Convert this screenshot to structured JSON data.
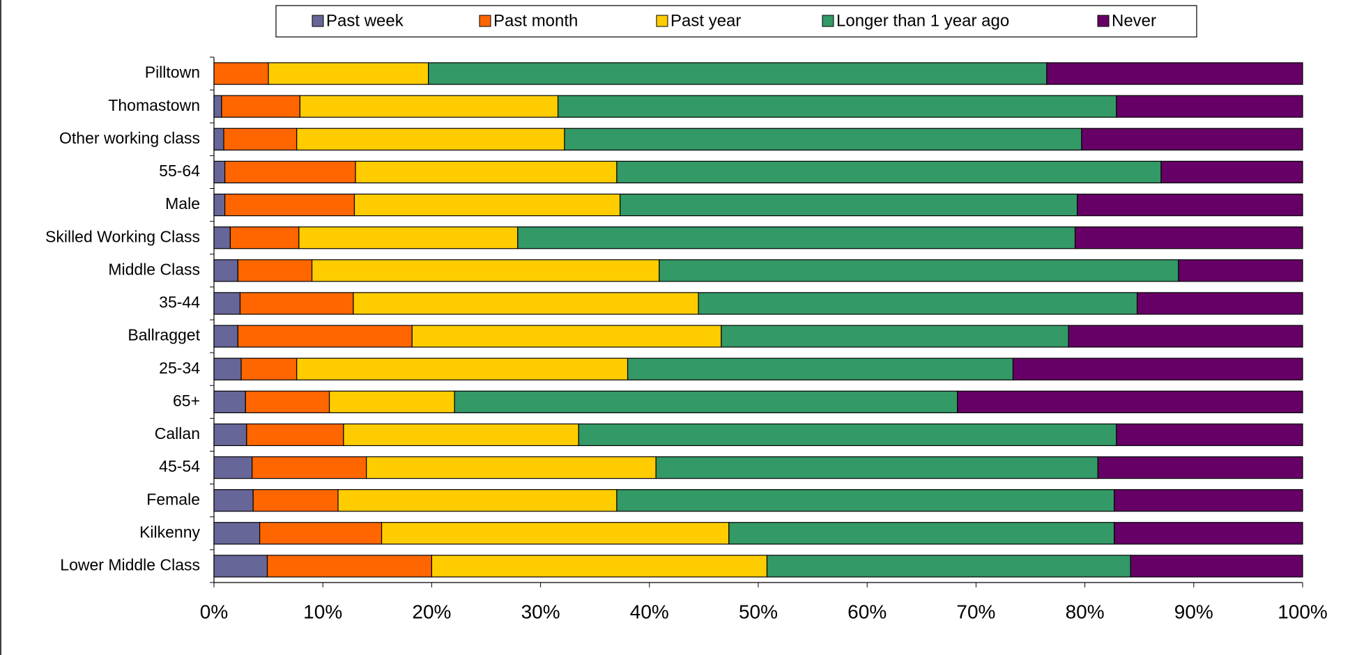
{
  "chart_data": {
    "type": "stacked_bar_horizontal",
    "categories": [
      "Pilltown",
      "Thomastown",
      "Other working class",
      "55-64",
      "Male",
      "Skilled Working Class",
      "Middle Class",
      "35-44",
      "Ballragget",
      "25-34",
      "65+",
      "Callan",
      "45-54",
      "Female",
      "Kilkenny",
      "Lower Middle Class"
    ],
    "series": [
      {
        "name": "Past week",
        "color": "#666699",
        "values": [
          0,
          0.7,
          0.9,
          1.0,
          1.0,
          1.5,
          2.2,
          2.4,
          2.2,
          2.5,
          2.9,
          3.0,
          3.5,
          3.6,
          4.2,
          4.9
        ]
      },
      {
        "name": "Past month",
        "color": "#ff6600",
        "values": [
          5.0,
          7.2,
          6.7,
          12.0,
          11.9,
          6.3,
          6.8,
          10.4,
          16.0,
          5.1,
          7.7,
          8.9,
          10.5,
          7.8,
          11.2,
          15.1
        ]
      },
      {
        "name": "Past year",
        "color": "#ffcc00",
        "values": [
          14.7,
          23.7,
          24.6,
          24.0,
          24.4,
          20.1,
          31.9,
          31.7,
          28.4,
          30.4,
          11.5,
          21.6,
          26.6,
          25.6,
          31.9,
          30.8
        ]
      },
      {
        "name": "Longer than 1 year ago",
        "color": "#339966",
        "values": [
          56.8,
          51.3,
          47.5,
          50.0,
          42.0,
          51.2,
          47.7,
          40.3,
          31.9,
          35.4,
          46.2,
          49.4,
          40.6,
          45.7,
          35.4,
          33.4
        ]
      },
      {
        "name": "Never",
        "color": "#660066",
        "values": [
          23.5,
          17.1,
          20.3,
          13.0,
          20.7,
          20.9,
          11.4,
          15.2,
          21.5,
          26.6,
          31.7,
          17.1,
          18.8,
          17.3,
          17.3,
          15.8
        ]
      }
    ],
    "xlim": [
      0,
      100
    ],
    "xticks": [
      {
        "value": 0,
        "label": "0%"
      },
      {
        "value": 10,
        "label": "10%"
      },
      {
        "value": 20,
        "label": "20%"
      },
      {
        "value": 30,
        "label": "30%"
      },
      {
        "value": 40,
        "label": "40%"
      },
      {
        "value": 50,
        "label": "50%"
      },
      {
        "value": 60,
        "label": "60%"
      },
      {
        "value": 70,
        "label": "70%"
      },
      {
        "value": 80,
        "label": "80%"
      },
      {
        "value": 90,
        "label": "90%"
      },
      {
        "value": 100,
        "label": "100%"
      }
    ],
    "legend": "top"
  }
}
